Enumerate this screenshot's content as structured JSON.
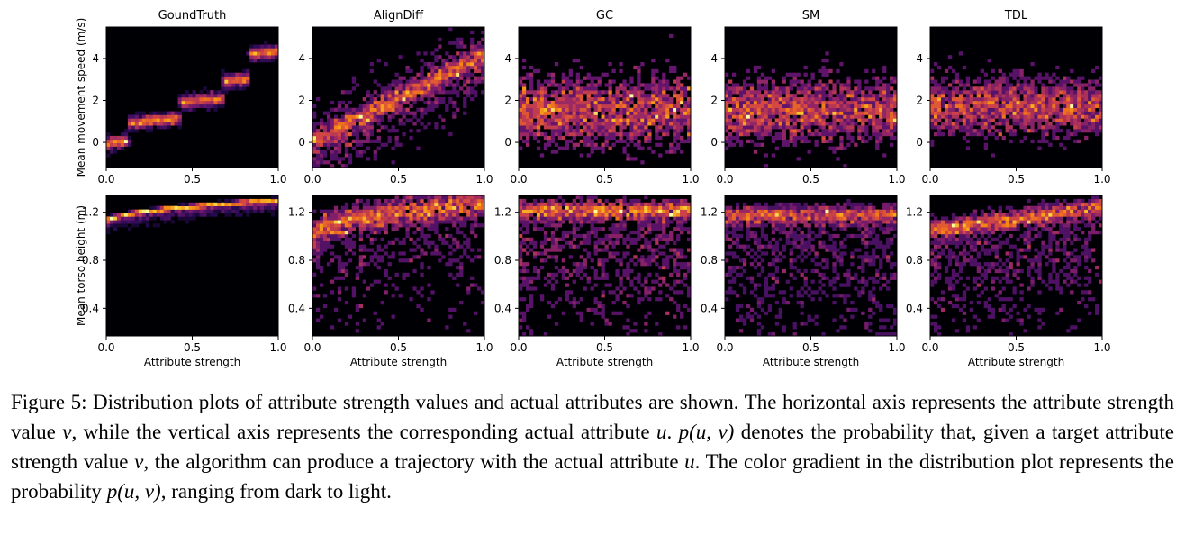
{
  "chart_data": {
    "type": "heatmap",
    "colormap": "inferno",
    "xlabel": "Attribute strength",
    "xticks": [
      "0.0",
      "0.5",
      "1.0"
    ],
    "xlim": [
      0,
      1
    ],
    "rows": [
      {
        "ylabel": "Mean movement speed (m/s)",
        "yticks": [
          "0",
          "2",
          "4"
        ],
        "ytick_values": [
          0,
          2,
          4
        ],
        "ylim": [
          -1.2,
          5.5
        ]
      },
      {
        "ylabel": "Mean torso height (m)",
        "yticks": [
          "0.4",
          "0.8",
          "1.2"
        ],
        "ytick_values": [
          0.4,
          0.8,
          1.2
        ],
        "ylim": [
          0.17,
          1.34
        ]
      }
    ],
    "panels": [
      {
        "title": "GoundTruth",
        "speed": {
          "kind": "steps",
          "points": [
            [
              0.05,
              0.0
            ],
            [
              0.25,
              1.0
            ],
            [
              0.55,
              2.0
            ],
            [
              0.8,
              3.0
            ],
            [
              0.95,
              4.3
            ]
          ],
          "noise": 0.15
        },
        "height": {
          "kind": "curve",
          "start": 1.12,
          "end": 1.3,
          "noise": 0.02
        }
      },
      {
        "title": "AlignDiff",
        "speed": {
          "kind": "linear",
          "start": 0.0,
          "end": 4.2,
          "noise": 0.9
        },
        "height": {
          "kind": "curve",
          "start": 1.0,
          "end": 1.28,
          "noise": 0.2
        }
      },
      {
        "title": "GC",
        "speed": {
          "kind": "band",
          "center": 1.5,
          "spread": 1.2
        },
        "height": {
          "kind": "top-band",
          "center": 1.22,
          "spread": 0.5
        }
      },
      {
        "title": "SM",
        "speed": {
          "kind": "band",
          "center": 1.5,
          "spread": 1.1
        },
        "height": {
          "kind": "top-band",
          "center": 1.18,
          "spread": 0.55
        }
      },
      {
        "title": "TDL",
        "speed": {
          "kind": "band",
          "center": 1.7,
          "spread": 1.0
        },
        "height": {
          "kind": "curve-band",
          "start": 1.05,
          "end": 1.25,
          "spread": 0.45
        }
      }
    ]
  },
  "caption": {
    "label": "Figure 5:",
    "part1": "Distribution plots of attribute strength values and actual attributes are shown. The horizontal axis represents the attribute strength value ",
    "v1": "v",
    "part2": ", while the vertical axis represents the corresponding actual attribute ",
    "u1": "u",
    "part3": ". ",
    "puv1": "p(u, v)",
    "part4": " denotes the probability that, given a target attribute strength value ",
    "v2": "v",
    "part5": ", the algorithm can produce a trajectory with the actual attribute ",
    "u2": "u",
    "part6": ". The color gradient in the distribution plot represents the probability ",
    "puv2": "p(u, v)",
    "part7": ", ranging from dark to light."
  }
}
